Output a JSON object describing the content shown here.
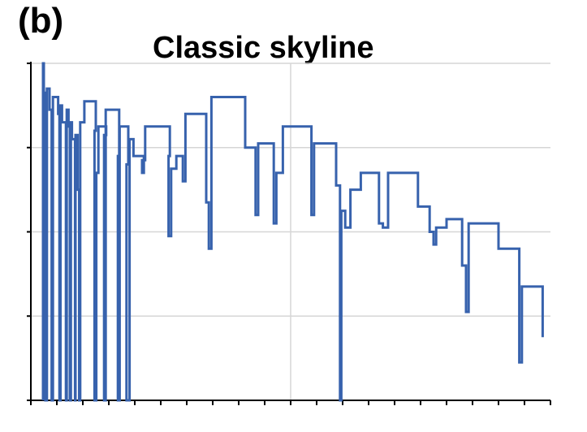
{
  "panel_label": "(b)",
  "chart_data": {
    "type": "line",
    "title": "Classic skyline",
    "xlabel": "",
    "ylabel": "",
    "xlim": [
      0,
      20
    ],
    "ylim": [
      0,
      4
    ],
    "x_ticks_count": 20,
    "y_ticks_count": 4,
    "grid": true,
    "step_style": "step-after",
    "line_color": "#3762ad",
    "grid_color": "#d6d6d6",
    "series": [
      {
        "points": [
          [
            0.47,
            0.0
          ],
          [
            0.47,
            4.0
          ],
          [
            0.5,
            4.0
          ],
          [
            0.5,
            3.65
          ],
          [
            0.56,
            3.65
          ],
          [
            0.56,
            0.0
          ],
          [
            0.62,
            0.0
          ],
          [
            0.62,
            3.7
          ],
          [
            0.72,
            3.7
          ],
          [
            0.72,
            3.45
          ],
          [
            0.8,
            3.45
          ],
          [
            0.8,
            0.0
          ],
          [
            0.85,
            0.0
          ],
          [
            0.85,
            3.6
          ],
          [
            1.05,
            3.6
          ],
          [
            1.05,
            3.4
          ],
          [
            1.1,
            3.4
          ],
          [
            1.1,
            0.0
          ],
          [
            1.14,
            0.0
          ],
          [
            1.14,
            3.5
          ],
          [
            1.2,
            3.5
          ],
          [
            1.2,
            3.3
          ],
          [
            1.35,
            3.3
          ],
          [
            1.35,
            0.0
          ],
          [
            1.38,
            0.0
          ],
          [
            1.38,
            3.45
          ],
          [
            1.45,
            3.45
          ],
          [
            1.45,
            3.25
          ],
          [
            1.5,
            3.25
          ],
          [
            1.5,
            0.0
          ],
          [
            1.54,
            0.0
          ],
          [
            1.54,
            3.3
          ],
          [
            1.58,
            3.3
          ],
          [
            1.58,
            3.1
          ],
          [
            1.7,
            3.1
          ],
          [
            1.7,
            0.0
          ],
          [
            1.72,
            0.0
          ],
          [
            1.72,
            3.15
          ],
          [
            1.8,
            3.15
          ],
          [
            1.8,
            2.5
          ],
          [
            1.86,
            2.5
          ],
          [
            1.86,
            0.0
          ],
          [
            1.9,
            0.0
          ],
          [
            1.9,
            3.3
          ],
          [
            2.06,
            3.3
          ],
          [
            2.06,
            3.55
          ],
          [
            2.5,
            3.55
          ],
          [
            2.5,
            3.2
          ],
          [
            2.45,
            3.2
          ],
          [
            2.45,
            0.0
          ],
          [
            2.52,
            0.0
          ],
          [
            2.52,
            2.7
          ],
          [
            2.6,
            2.7
          ],
          [
            2.6,
            3.25
          ],
          [
            2.9,
            3.25
          ],
          [
            2.9,
            3.15
          ],
          [
            2.82,
            3.15
          ],
          [
            2.82,
            0.0
          ],
          [
            2.88,
            0.0
          ],
          [
            2.88,
            3.45
          ],
          [
            3.4,
            3.45
          ],
          [
            3.4,
            2.9
          ],
          [
            3.35,
            2.9
          ],
          [
            3.35,
            0.0
          ],
          [
            3.42,
            0.0
          ],
          [
            3.42,
            3.25
          ],
          [
            3.75,
            3.25
          ],
          [
            3.75,
            2.8
          ],
          [
            3.68,
            2.8
          ],
          [
            3.68,
            0.0
          ],
          [
            3.8,
            0.0
          ],
          [
            3.8,
            3.1
          ],
          [
            3.95,
            3.1
          ],
          [
            3.95,
            2.9
          ],
          [
            4.35,
            2.9
          ],
          [
            4.35,
            2.7
          ],
          [
            4.28,
            2.7
          ],
          [
            4.28,
            2.85
          ],
          [
            4.4,
            2.85
          ],
          [
            4.4,
            3.25
          ],
          [
            5.35,
            3.25
          ],
          [
            5.35,
            2.9
          ],
          [
            5.3,
            2.9
          ],
          [
            5.3,
            1.95
          ],
          [
            5.4,
            1.95
          ],
          [
            5.4,
            2.75
          ],
          [
            5.6,
            2.75
          ],
          [
            5.6,
            2.9
          ],
          [
            5.85,
            2.9
          ],
          [
            5.85,
            2.6
          ],
          [
            5.95,
            2.6
          ],
          [
            5.95,
            3.4
          ],
          [
            6.75,
            3.4
          ],
          [
            6.75,
            2.35
          ],
          [
            6.85,
            2.35
          ],
          [
            6.85,
            1.8
          ],
          [
            6.95,
            1.8
          ],
          [
            6.95,
            3.6
          ],
          [
            8.25,
            3.6
          ],
          [
            8.25,
            3.0
          ],
          [
            8.65,
            3.0
          ],
          [
            8.65,
            2.2
          ],
          [
            8.75,
            2.2
          ],
          [
            8.75,
            3.05
          ],
          [
            9.35,
            3.05
          ],
          [
            9.35,
            2.1
          ],
          [
            9.45,
            2.1
          ],
          [
            9.45,
            2.7
          ],
          [
            9.7,
            2.7
          ],
          [
            9.7,
            3.25
          ],
          [
            10.8,
            3.25
          ],
          [
            10.8,
            2.2
          ],
          [
            10.9,
            2.2
          ],
          [
            10.9,
            3.05
          ],
          [
            11.75,
            3.05
          ],
          [
            11.75,
            2.55
          ],
          [
            11.9,
            2.55
          ],
          [
            11.9,
            0.0
          ],
          [
            11.95,
            0.0
          ],
          [
            11.95,
            2.25
          ],
          [
            12.1,
            2.25
          ],
          [
            12.1,
            2.05
          ],
          [
            12.3,
            2.05
          ],
          [
            12.3,
            2.5
          ],
          [
            12.7,
            2.5
          ],
          [
            12.7,
            2.7
          ],
          [
            13.4,
            2.7
          ],
          [
            13.4,
            2.1
          ],
          [
            13.55,
            2.1
          ],
          [
            13.55,
            2.05
          ],
          [
            13.75,
            2.05
          ],
          [
            13.75,
            2.7
          ],
          [
            14.9,
            2.7
          ],
          [
            14.9,
            2.3
          ],
          [
            15.35,
            2.3
          ],
          [
            15.35,
            2.0
          ],
          [
            15.5,
            2.0
          ],
          [
            15.5,
            1.85
          ],
          [
            15.6,
            1.85
          ],
          [
            15.6,
            2.05
          ],
          [
            16.0,
            2.05
          ],
          [
            16.0,
            2.15
          ],
          [
            16.6,
            2.15
          ],
          [
            16.6,
            1.6
          ],
          [
            16.75,
            1.6
          ],
          [
            16.75,
            1.05
          ],
          [
            16.85,
            1.05
          ],
          [
            16.85,
            2.1
          ],
          [
            18.0,
            2.1
          ],
          [
            18.0,
            1.8
          ],
          [
            18.8,
            1.8
          ],
          [
            18.8,
            0.45
          ],
          [
            18.9,
            0.45
          ],
          [
            18.9,
            1.35
          ],
          [
            19.7,
            1.35
          ],
          [
            19.7,
            0.75
          ]
        ]
      }
    ]
  }
}
